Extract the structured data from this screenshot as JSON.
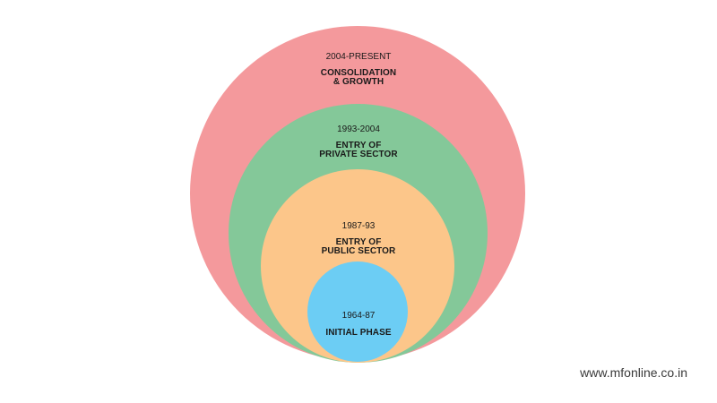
{
  "rings": [
    {
      "period": "2004-PRESENT",
      "title_lines": [
        "CONSOLIDATION",
        "& GROWTH"
      ],
      "color": "#f4999c"
    },
    {
      "period": "1993-2004",
      "title_lines": [
        "ENTRY OF",
        "PRIVATE SECTOR"
      ],
      "color": "#84c899"
    },
    {
      "period": "1987-93",
      "title_lines": [
        "ENTRY OF",
        "PUBLIC SECTOR"
      ],
      "color": "#fcc68a"
    },
    {
      "period": "1964-87",
      "title_lines": [
        "INITIAL PHASE"
      ],
      "color": "#6ccdf4"
    }
  ],
  "watermark": "www.mfonline.co.in"
}
